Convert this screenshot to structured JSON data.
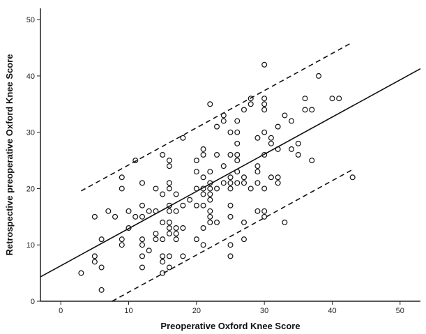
{
  "chart_data": {
    "type": "scatter",
    "title": "",
    "xlabel": "Preoperative Oxford Knee Score",
    "ylabel": "Retrospective preoperative Oxford Knee Score",
    "xlim": [
      -3,
      53
    ],
    "ylim": [
      0,
      52
    ],
    "xticks": [
      0,
      10,
      20,
      30,
      40,
      50
    ],
    "yticks": [
      0,
      10,
      20,
      30,
      40,
      50
    ],
    "grid": false,
    "legend": "none",
    "points": [
      [
        3,
        5
      ],
      [
        5,
        7
      ],
      [
        5,
        8
      ],
      [
        5,
        15
      ],
      [
        6,
        2
      ],
      [
        6,
        6
      ],
      [
        6,
        11
      ],
      [
        7,
        16
      ],
      [
        8,
        15
      ],
      [
        9,
        10
      ],
      [
        9,
        11
      ],
      [
        9,
        20
      ],
      [
        9,
        22
      ],
      [
        10,
        13
      ],
      [
        10,
        16
      ],
      [
        11,
        15
      ],
      [
        11,
        25
      ],
      [
        12,
        6
      ],
      [
        12,
        8
      ],
      [
        12,
        10
      ],
      [
        12,
        11
      ],
      [
        12,
        15
      ],
      [
        12,
        17
      ],
      [
        12,
        21
      ],
      [
        13,
        9
      ],
      [
        13,
        16
      ],
      [
        14,
        11
      ],
      [
        14,
        12
      ],
      [
        14,
        16
      ],
      [
        14,
        20
      ],
      [
        15,
        5
      ],
      [
        15,
        7
      ],
      [
        15,
        8
      ],
      [
        15,
        11
      ],
      [
        15,
        14
      ],
      [
        15,
        19
      ],
      [
        15,
        26
      ],
      [
        16,
        6
      ],
      [
        16,
        8
      ],
      [
        16,
        12
      ],
      [
        16,
        13
      ],
      [
        16,
        14
      ],
      [
        16,
        16
      ],
      [
        16,
        17
      ],
      [
        16,
        20
      ],
      [
        16,
        21
      ],
      [
        16,
        24
      ],
      [
        16,
        25
      ],
      [
        17,
        11
      ],
      [
        17,
        12
      ],
      [
        17,
        13
      ],
      [
        17,
        16
      ],
      [
        17,
        19
      ],
      [
        18,
        8
      ],
      [
        18,
        13
      ],
      [
        18,
        17
      ],
      [
        18,
        29
      ],
      [
        19,
        18
      ],
      [
        20,
        11
      ],
      [
        20,
        17
      ],
      [
        20,
        20
      ],
      [
        20,
        23
      ],
      [
        20,
        25
      ],
      [
        21,
        10
      ],
      [
        21,
        13
      ],
      [
        21,
        17
      ],
      [
        21,
        19
      ],
      [
        21,
        20
      ],
      [
        21,
        22
      ],
      [
        21,
        26
      ],
      [
        21,
        27
      ],
      [
        22,
        14
      ],
      [
        22,
        15
      ],
      [
        22,
        16
      ],
      [
        22,
        18
      ],
      [
        22,
        19
      ],
      [
        22,
        20
      ],
      [
        22,
        21
      ],
      [
        22,
        23
      ],
      [
        22,
        35
      ],
      [
        23,
        14
      ],
      [
        23,
        20
      ],
      [
        23,
        26
      ],
      [
        23,
        31
      ],
      [
        24,
        21
      ],
      [
        24,
        24
      ],
      [
        24,
        32
      ],
      [
        24,
        33
      ],
      [
        25,
        8
      ],
      [
        25,
        10
      ],
      [
        25,
        15
      ],
      [
        25,
        17
      ],
      [
        25,
        20
      ],
      [
        25,
        21
      ],
      [
        25,
        22
      ],
      [
        25,
        26
      ],
      [
        25,
        30
      ],
      [
        26,
        21
      ],
      [
        26,
        23
      ],
      [
        26,
        25
      ],
      [
        26,
        26
      ],
      [
        26,
        28
      ],
      [
        26,
        30
      ],
      [
        26,
        32
      ],
      [
        27,
        11
      ],
      [
        27,
        14
      ],
      [
        27,
        21
      ],
      [
        27,
        22
      ],
      [
        27,
        34
      ],
      [
        28,
        20
      ],
      [
        28,
        35
      ],
      [
        28,
        36
      ],
      [
        29,
        16
      ],
      [
        29,
        21
      ],
      [
        29,
        23
      ],
      [
        29,
        24
      ],
      [
        29,
        29
      ],
      [
        30,
        15
      ],
      [
        30,
        16
      ],
      [
        30,
        20
      ],
      [
        30,
        26
      ],
      [
        30,
        30
      ],
      [
        30,
        34
      ],
      [
        30,
        35
      ],
      [
        30,
        36
      ],
      [
        30,
        42
      ],
      [
        31,
        22
      ],
      [
        31,
        28
      ],
      [
        31,
        29
      ],
      [
        32,
        21
      ],
      [
        32,
        22
      ],
      [
        32,
        27
      ],
      [
        32,
        31
      ],
      [
        33,
        14
      ],
      [
        33,
        33
      ],
      [
        34,
        27
      ],
      [
        34,
        32
      ],
      [
        35,
        26
      ],
      [
        35,
        28
      ],
      [
        36,
        34
      ],
      [
        36,
        36
      ],
      [
        37,
        25
      ],
      [
        37,
        34
      ],
      [
        38,
        40
      ],
      [
        40,
        36
      ],
      [
        41,
        36
      ],
      [
        43,
        22
      ]
    ],
    "fit_line": {
      "slope": 0.66,
      "intercept": 6.3
    },
    "prediction_band": {
      "offset": 11.3,
      "x_range": [
        3,
        43
      ]
    }
  }
}
